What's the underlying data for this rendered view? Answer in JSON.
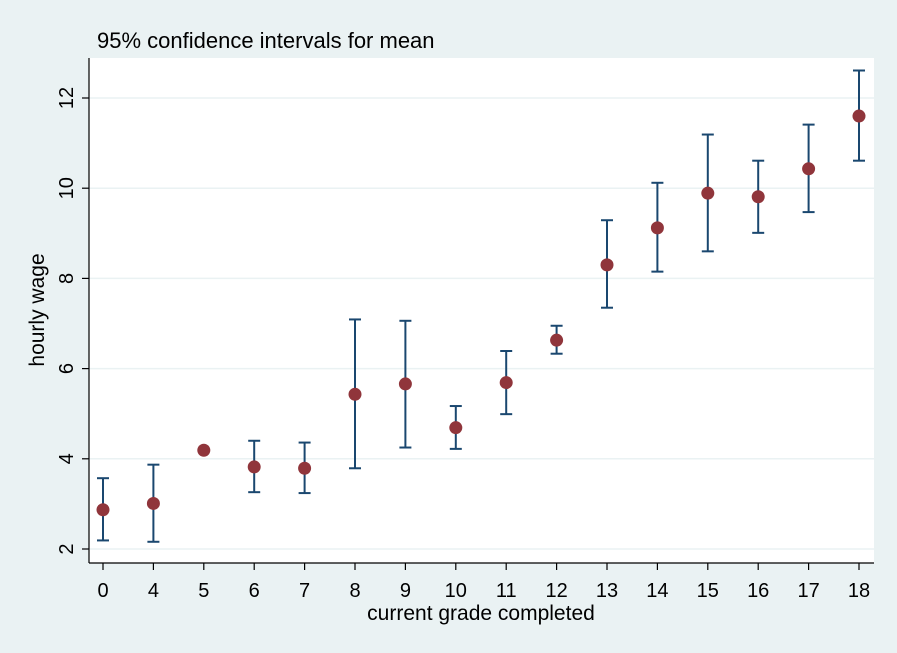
{
  "chart_data": {
    "type": "scatter",
    "title": "95% confidence intervals for mean",
    "xlabel": "current grade completed",
    "ylabel": "hourly wage",
    "categories": [
      "0",
      "4",
      "5",
      "6",
      "7",
      "8",
      "9",
      "10",
      "11",
      "12",
      "13",
      "14",
      "15",
      "16",
      "17",
      "18"
    ],
    "ylim": [
      1.8,
      12.9
    ],
    "yticks": [
      2,
      4,
      6,
      8,
      10,
      12
    ],
    "grid": true,
    "colors": {
      "ci": "#1a476f",
      "point": "#90353b",
      "background": "#eaf2f3",
      "plot": "#ffffff"
    },
    "series": [
      {
        "mean": [
          2.87,
          3.01,
          4.19,
          3.82,
          3.79,
          5.43,
          5.66,
          4.69,
          5.69,
          6.63,
          8.3,
          9.12,
          9.89,
          9.81,
          10.43,
          11.6
        ],
        "lower": [
          2.19,
          2.16,
          null,
          3.26,
          3.24,
          3.79,
          4.25,
          4.22,
          4.99,
          6.33,
          7.35,
          8.15,
          8.6,
          9.01,
          9.47,
          10.61
        ],
        "upper": [
          3.57,
          3.87,
          null,
          4.4,
          4.36,
          7.09,
          7.06,
          5.17,
          6.39,
          6.95,
          9.29,
          10.12,
          11.19,
          10.61,
          11.41,
          12.61
        ]
      }
    ]
  }
}
